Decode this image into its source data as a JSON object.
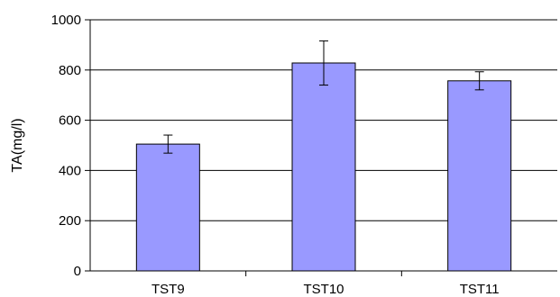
{
  "chart_data": {
    "type": "bar",
    "title": "",
    "xlabel": "",
    "ylabel": "TA(mg/l)",
    "categories": [
      "TST9",
      "TST10",
      "TST11"
    ],
    "values": [
      505,
      828,
      757
    ],
    "error": [
      36,
      88,
      36
    ],
    "ylim": [
      0,
      1000
    ],
    "yticks": [
      0,
      200,
      400,
      600,
      800,
      1000
    ],
    "grid": true,
    "legend": "none",
    "colors": {
      "bar_fill": "#9999ff",
      "bar_stroke": "#000000",
      "axis": "#000000",
      "grid": "#000000"
    }
  }
}
